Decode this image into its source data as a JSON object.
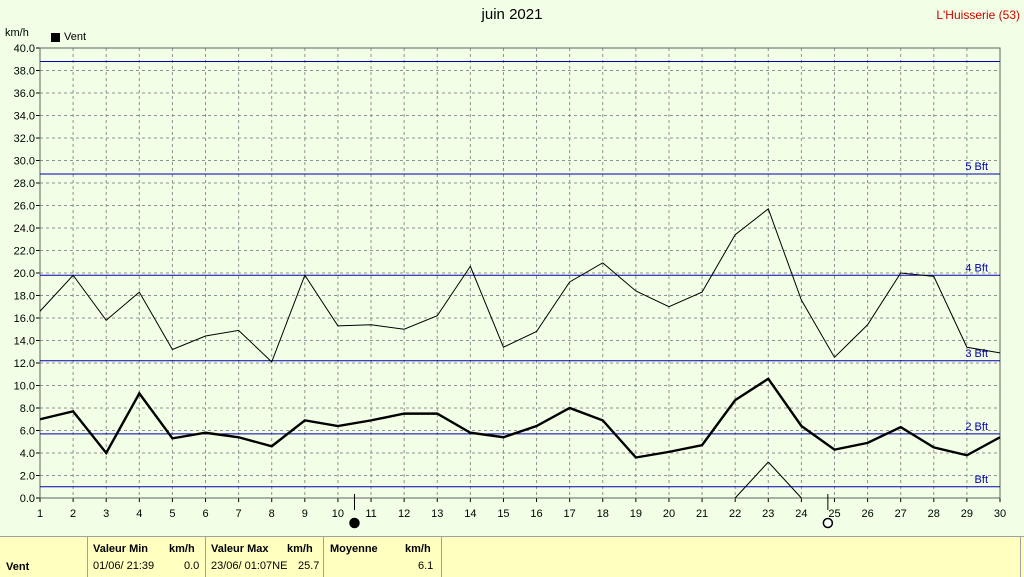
{
  "title": "juin 2021",
  "station": "L'Huisserie (53)",
  "unit": "km/h",
  "legend": "Vent",
  "chart_data": {
    "type": "line",
    "title": "juin 2021",
    "ylabel": "km/h",
    "ylim": [
      0,
      40
    ],
    "yticks": [
      "0.0",
      "2.0",
      "4.0",
      "6.0",
      "8.0",
      "10.0",
      "12.0",
      "14.0",
      "16.0",
      "18.0",
      "20.0",
      "22.0",
      "24.0",
      "26.0",
      "28.0",
      "30.0",
      "32.0",
      "34.0",
      "36.0",
      "38.0",
      "40.0"
    ],
    "categories": [
      "1",
      "2",
      "3",
      "4",
      "5",
      "6",
      "7",
      "8",
      "9",
      "10",
      "11",
      "12",
      "13",
      "14",
      "15",
      "16",
      "17",
      "18",
      "19",
      "20",
      "21",
      "22",
      "23",
      "24",
      "25",
      "26",
      "27",
      "28",
      "29",
      "30"
    ],
    "grid": true,
    "series": [
      {
        "name": "Vent",
        "role": "average",
        "color": "#000000",
        "values": [
          7.0,
          7.7,
          4.0,
          9.3,
          5.3,
          5.8,
          5.4,
          4.6,
          6.9,
          6.4,
          6.9,
          7.5,
          7.5,
          5.8,
          5.4,
          6.4,
          8.0,
          6.9,
          3.6,
          4.1,
          4.7,
          8.7,
          10.6,
          6.4,
          4.3,
          4.9,
          6.3,
          4.5,
          3.8,
          5.4
        ]
      },
      {
        "role": "max",
        "color": "#000000",
        "values": [
          16.6,
          19.8,
          15.8,
          18.3,
          13.2,
          14.4,
          14.9,
          12.1,
          19.8,
          15.3,
          15.4,
          15.0,
          16.2,
          20.6,
          13.4,
          14.8,
          19.2,
          20.9,
          18.4,
          17.0,
          18.3,
          23.4,
          25.7,
          17.6,
          12.5,
          15.4,
          20.0,
          19.7,
          13.4,
          12.9
        ]
      },
      {
        "role": "min",
        "color": "#000000",
        "values": [
          0,
          0,
          0,
          0,
          0,
          0,
          0,
          0,
          0,
          0,
          0,
          0,
          0,
          0,
          0,
          0,
          0,
          0,
          0,
          0,
          0,
          0,
          3.2,
          0,
          0,
          0,
          0,
          0,
          0,
          0
        ]
      }
    ],
    "reference_lines": [
      {
        "value": 1.0,
        "label": "Bft",
        "color": "#0000b0"
      },
      {
        "value": 5.7,
        "label": "2 Bft",
        "color": "#0000b0"
      },
      {
        "value": 12.2,
        "label": "3 Bft",
        "color": "#0000b0"
      },
      {
        "value": 19.8,
        "label": "4 Bft",
        "color": "#0000b0"
      },
      {
        "value": 28.8,
        "label": "5 Bft",
        "color": "#0000b0"
      },
      {
        "value": 38.8,
        "label": "",
        "color": "#0000b0"
      }
    ],
    "moon_phases": [
      {
        "day": 10.5,
        "phase": "new"
      },
      {
        "day": 24.8,
        "phase": "full"
      }
    ]
  },
  "footer": {
    "row_label": "Vent",
    "min_header": "Valeur Min",
    "min_unit": "km/h",
    "min_when": "01/06/  21:39",
    "min_value": "0.0",
    "max_header": "Valeur Max",
    "max_unit": "km/h",
    "max_when": "23/06/  01:07NE",
    "max_value": "25.7",
    "avg_header": "Moyenne",
    "avg_unit": "km/h",
    "avg_value": "6.1"
  },
  "colors": {
    "background": "#f2ffe6",
    "footer": "#ffffc0",
    "station": "#d00000",
    "reference": "#0000b0"
  }
}
